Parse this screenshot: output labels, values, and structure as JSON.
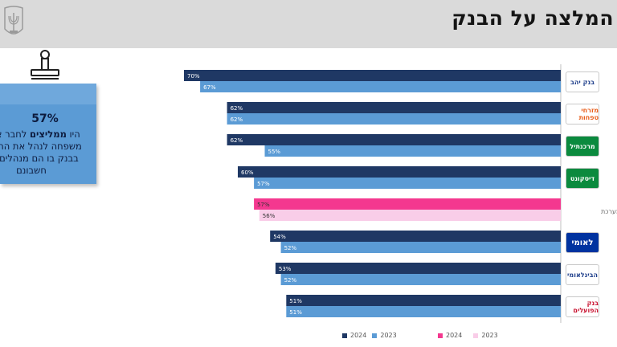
{
  "header": {
    "title": "המלצה על הבנק"
  },
  "callout": {
    "percentage": "57%",
    "text_prefix": "היו ",
    "text_bold": "ממליצים",
    "text_suffix": " לחבר או בן משפחה לנהל את החשבון בבנק בו הם מנהלים את חשבונם"
  },
  "legend": {
    "banks_2024": "2024",
    "banks_2023": "2023",
    "avg_2024": "2024",
    "avg_2023": "2023"
  },
  "colors": {
    "bar_2024": "#1f3864",
    "bar_2023": "#5b9bd5",
    "avg_2024": "#f4388f",
    "avg_2023": "#f9cde8"
  },
  "banks": [
    {
      "logo_text": "בנק יהב",
      "logo_color": "#1f3f8b"
    },
    {
      "logo_text": "מזרחי טפחות",
      "logo_color": "#e85d1a"
    },
    {
      "logo_text": "מרכנתיל",
      "logo_color": "#0b8a3e"
    },
    {
      "logo_text": "דיסקונט",
      "logo_color": "#0b8a3e"
    },
    {
      "logo_text": "ממוצע מערכת",
      "logo_color": "#666666"
    },
    {
      "logo_text": "לאומי",
      "logo_color": "#0033a0"
    },
    {
      "logo_text": "הבינלאומי",
      "logo_color": "#1f3f8b"
    },
    {
      "logo_text": "בנק הפועלים",
      "logo_color": "#c8102e"
    }
  ],
  "chart_data": {
    "type": "bar",
    "orientation": "horizontal",
    "categories": [
      "בנק יהב",
      "מזרחי טפחות",
      "מרכנתיל",
      "דיסקונט",
      "ממוצע מערכת",
      "לאומי",
      "הבינלאומי",
      "בנק הפועלים"
    ],
    "series": [
      {
        "name": "2024",
        "values": [
          70,
          62,
          62,
          60,
          57,
          54,
          53,
          51
        ]
      },
      {
        "name": "2023",
        "values": [
          67,
          62,
          55,
          57,
          56,
          52,
          52,
          51
        ]
      }
    ],
    "value_labels_2024": [
      "70%",
      "62%",
      "62%",
      "60%",
      "57%",
      "54%",
      "53%",
      "51%"
    ],
    "value_labels_2023": [
      "67%",
      "62%",
      "55%",
      "57%",
      "56%",
      "52%",
      "52%",
      "51%"
    ],
    "highlight_category": "ממוצע מערכת",
    "unit": "%",
    "legend_position": "bottom"
  }
}
